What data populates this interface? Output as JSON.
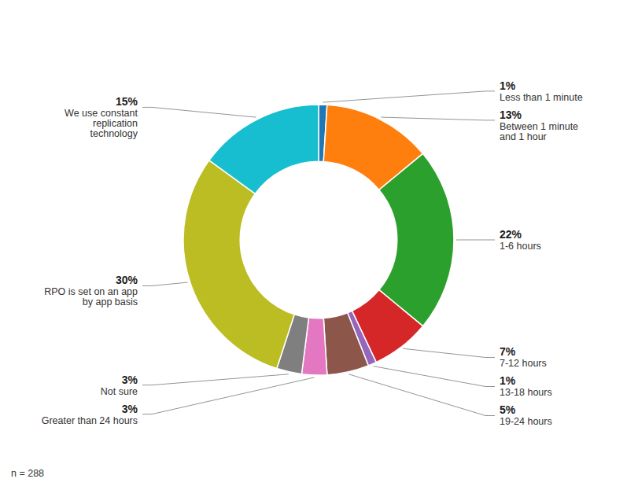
{
  "chart_data": {
    "type": "donut",
    "categories": [
      "Less than 1 minute",
      "Between 1 minute\nand 1 hour",
      "1-6 hours",
      "7-12 hours",
      "13-18 hours",
      "19-24 hours",
      "Greater than 24 hours",
      "Not sure",
      "RPO is set on an app\nby app basis",
      "We use constant\nreplication\ntechnology"
    ],
    "values": [
      1,
      13,
      22,
      7,
      1,
      5,
      3,
      3,
      30,
      15
    ],
    "value_labels": [
      "1%",
      "13%",
      "22%",
      "7%",
      "1%",
      "5%",
      "3%",
      "3%",
      "30%",
      "15%"
    ],
    "data_labels": true,
    "annotations": [
      "n = 288"
    ]
  }
}
